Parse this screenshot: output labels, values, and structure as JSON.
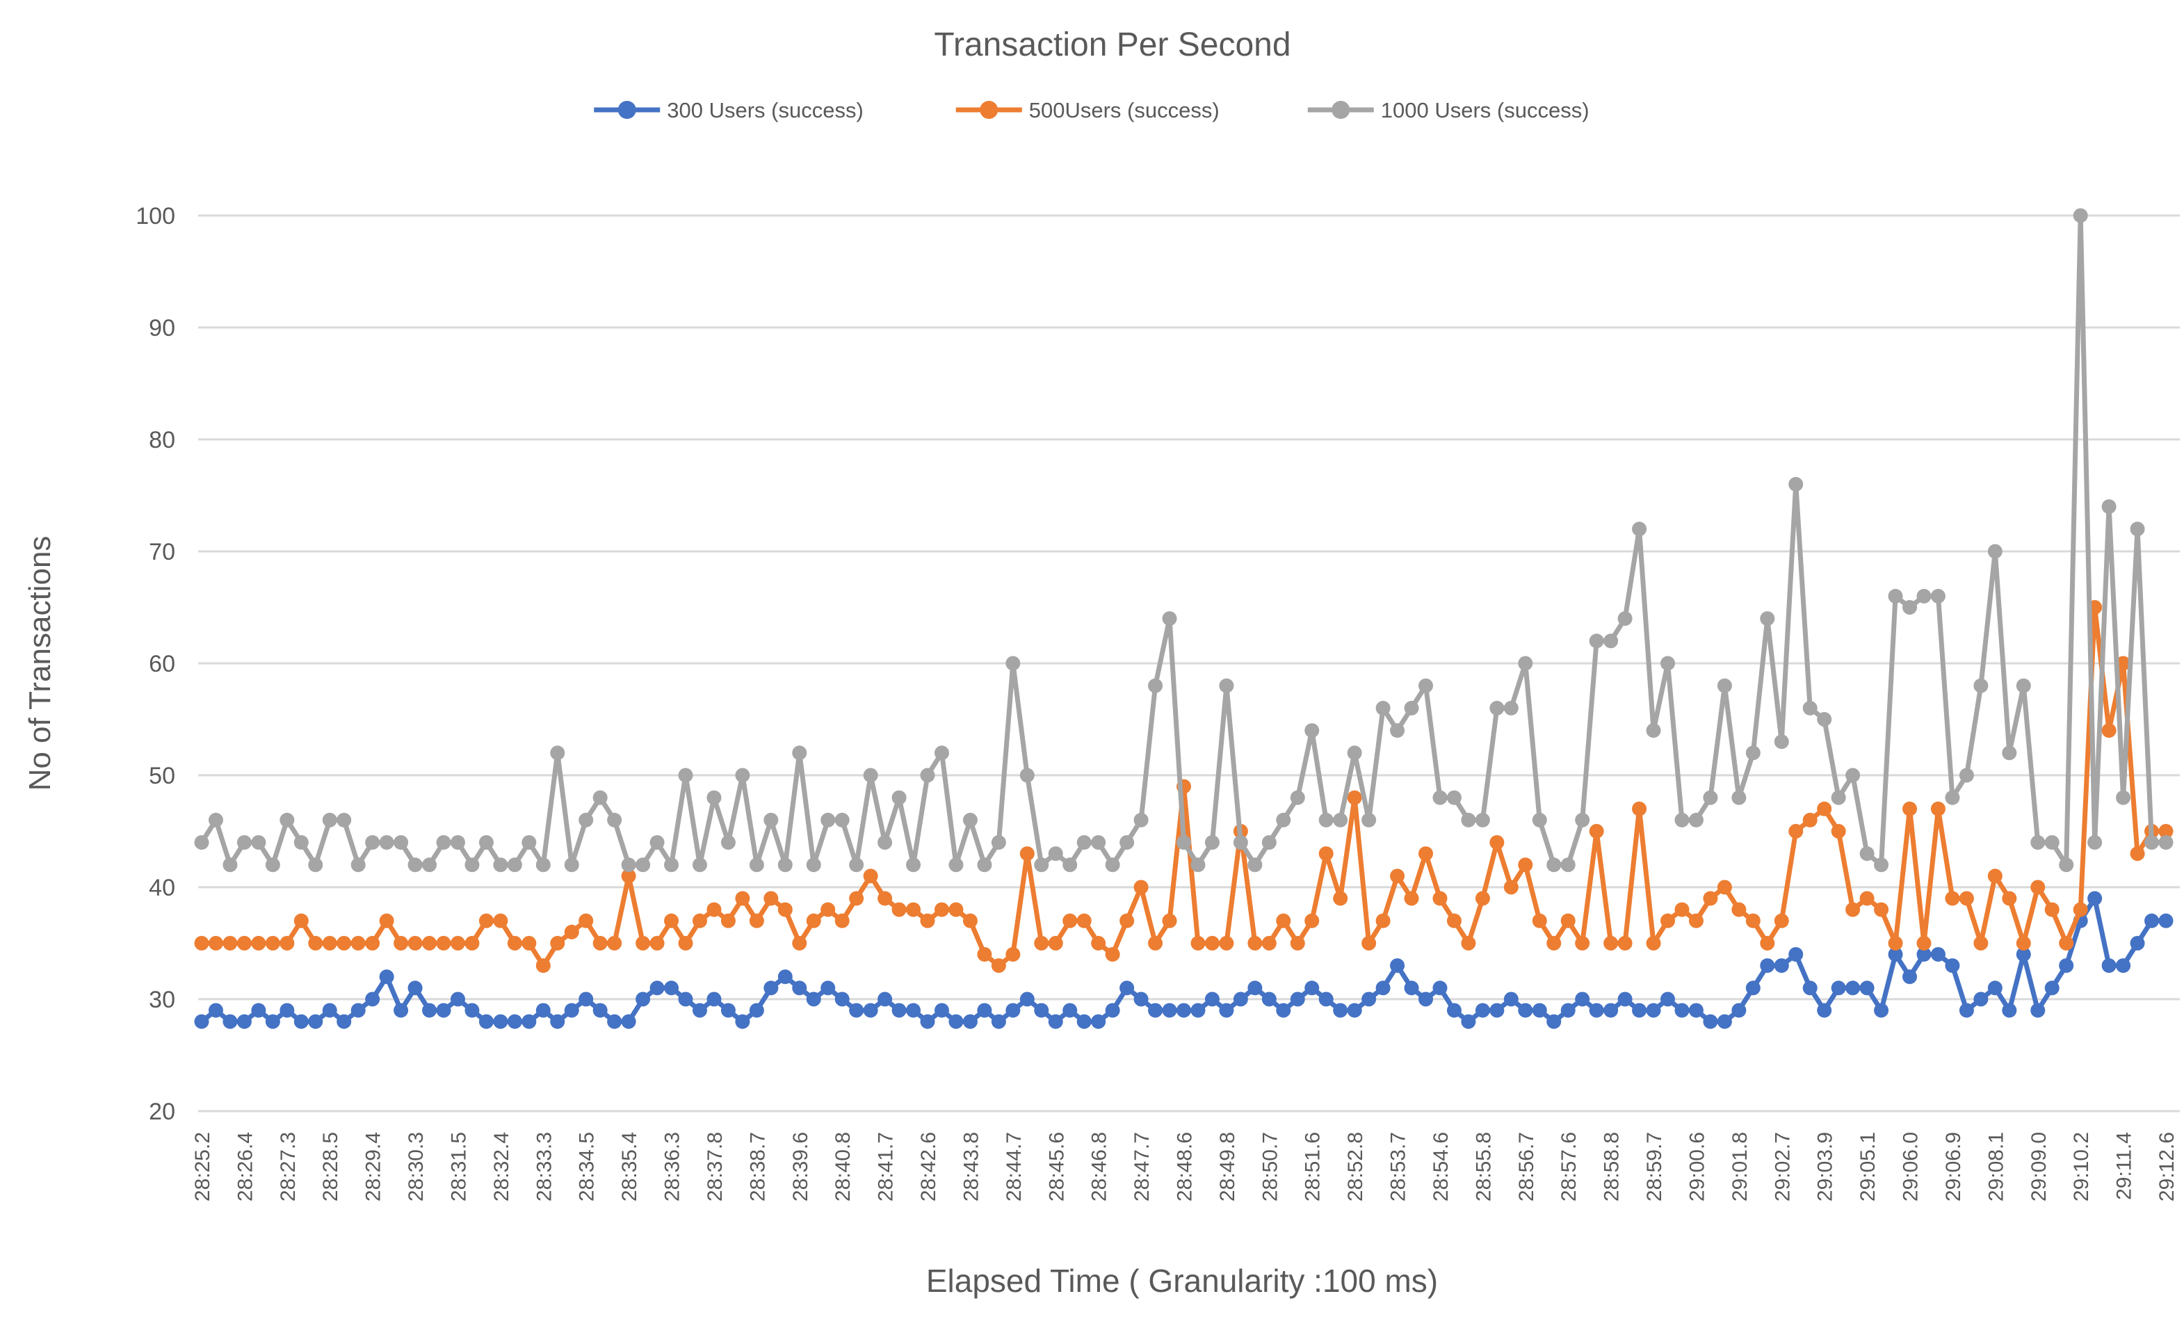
{
  "chart_data": {
    "type": "line",
    "title": "Transaction Per Second",
    "xlabel": "Elapsed Time ( Granularity :100 ms)",
    "ylabel": "No of Transactions",
    "ylim": [
      20,
      100
    ],
    "yticks": [
      20,
      30,
      40,
      50,
      60,
      70,
      80,
      90,
      100
    ],
    "grid": true,
    "legend_position": "top",
    "x_tick_label_every_n_points": 3,
    "marker_style": "filled-circle",
    "categories": [
      "28:25.2",
      "28:26.4",
      "28:27.3",
      "28:28.5",
      "28:29.4",
      "28:30.3",
      "28:31.5",
      "28:32.4",
      "28:33.3",
      "28:34.5",
      "28:35.4",
      "28:36.3",
      "28:37.8",
      "28:38.7",
      "28:39.6",
      "28:40.8",
      "28:41.7",
      "28:42.6",
      "28:43.8",
      "28:44.7",
      "28:45.6",
      "28:46.8",
      "28:47.7",
      "28:48.6",
      "28:49.8",
      "28:50.7",
      "28:51.6",
      "28:52.8",
      "28:53.7",
      "28:54.6",
      "28:55.8",
      "28:56.7",
      "28:57.6",
      "28:58.8",
      "28:59.7",
      "29:00.6",
      "29:01.8",
      "29:02.7",
      "29:03.9",
      "29:05.1",
      "29:06.0",
      "29:06.9",
      "29:08.1",
      "29:09.0",
      "29:10.2",
      "29:11.4",
      "29:12.6"
    ],
    "series": [
      {
        "name": "300 Users (success)",
        "color": "#4472C4",
        "values": [
          28,
          29,
          28,
          28,
          29,
          28,
          29,
          28,
          28,
          29,
          28,
          29,
          30,
          32,
          29,
          31,
          29,
          29,
          30,
          29,
          28,
          28,
          28,
          28,
          29,
          28,
          29,
          30,
          29,
          28,
          28,
          30,
          31,
          31,
          30,
          29,
          30,
          29,
          28,
          29,
          31,
          32,
          31,
          30,
          31,
          30,
          29,
          29,
          30,
          29,
          29,
          28,
          29,
          28,
          28,
          29,
          28,
          29,
          30,
          29,
          28,
          29,
          28,
          28,
          29,
          31,
          30,
          29,
          29,
          29,
          29,
          30,
          29,
          30,
          31,
          30,
          29,
          30,
          31,
          30,
          29,
          29,
          30,
          31,
          33,
          31,
          30,
          31,
          29,
          28,
          29,
          29,
          30,
          29,
          29,
          28,
          29,
          30,
          29,
          29,
          30,
          29,
          29,
          30,
          29,
          29,
          28,
          28,
          29,
          31,
          33,
          33,
          34,
          31,
          29,
          31,
          31,
          31,
          29,
          34,
          32,
          34,
          34,
          33,
          29,
          30,
          31,
          29,
          34,
          29,
          31,
          33,
          37,
          39,
          33,
          33,
          35,
          37,
          37
        ]
      },
      {
        "name": "500Users (success)",
        "color": "#ED7D31",
        "values": [
          35,
          35,
          35,
          35,
          35,
          35,
          35,
          37,
          35,
          35,
          35,
          35,
          35,
          37,
          35,
          35,
          35,
          35,
          35,
          35,
          37,
          37,
          35,
          35,
          33,
          35,
          36,
          37,
          35,
          35,
          41,
          35,
          35,
          37,
          35,
          37,
          38,
          37,
          39,
          37,
          39,
          38,
          35,
          37,
          38,
          37,
          39,
          41,
          39,
          38,
          38,
          37,
          38,
          38,
          37,
          34,
          33,
          34,
          43,
          35,
          35,
          37,
          37,
          35,
          34,
          37,
          40,
          35,
          37,
          49,
          35,
          35,
          35,
          45,
          35,
          35,
          37,
          35,
          37,
          43,
          39,
          48,
          35,
          37,
          41,
          39,
          43,
          39,
          37,
          35,
          39,
          44,
          40,
          42,
          37,
          35,
          37,
          35,
          45,
          35,
          35,
          47,
          35,
          37,
          38,
          37,
          39,
          40,
          38,
          37,
          35,
          37,
          45,
          46,
          47,
          45,
          38,
          39,
          38,
          35,
          47,
          35,
          47,
          39,
          39,
          35,
          41,
          39,
          35,
          40,
          38,
          35,
          38,
          65,
          54,
          60,
          43,
          45,
          45
        ]
      },
      {
        "name": "1000 Users (success)",
        "color": "#A5A5A5",
        "values": [
          44,
          46,
          42,
          44,
          44,
          42,
          46,
          44,
          42,
          46,
          46,
          42,
          44,
          44,
          44,
          42,
          42,
          44,
          44,
          42,
          44,
          42,
          42,
          44,
          42,
          52,
          42,
          46,
          48,
          46,
          42,
          42,
          44,
          42,
          50,
          42,
          48,
          44,
          50,
          42,
          46,
          42,
          52,
          42,
          46,
          46,
          42,
          50,
          44,
          48,
          42,
          50,
          52,
          42,
          46,
          42,
          44,
          60,
          50,
          42,
          43,
          42,
          44,
          44,
          42,
          44,
          46,
          58,
          64,
          44,
          42,
          44,
          58,
          44,
          42,
          44,
          46,
          48,
          54,
          46,
          46,
          52,
          46,
          56,
          54,
          56,
          58,
          48,
          48,
          46,
          46,
          56,
          56,
          60,
          46,
          42,
          42,
          46,
          62,
          62,
          64,
          72,
          54,
          60,
          46,
          46,
          48,
          58,
          48,
          52,
          64,
          53,
          76,
          56,
          55,
          48,
          50,
          43,
          42,
          66,
          65,
          66,
          66,
          48,
          50,
          58,
          70,
          52,
          58,
          44,
          44,
          42,
          100,
          44,
          74,
          48,
          72,
          44,
          44
        ]
      }
    ],
    "colors": {
      "grid": "#D9D9D9",
      "text": "#595959",
      "background": "#FFFFFF"
    }
  }
}
